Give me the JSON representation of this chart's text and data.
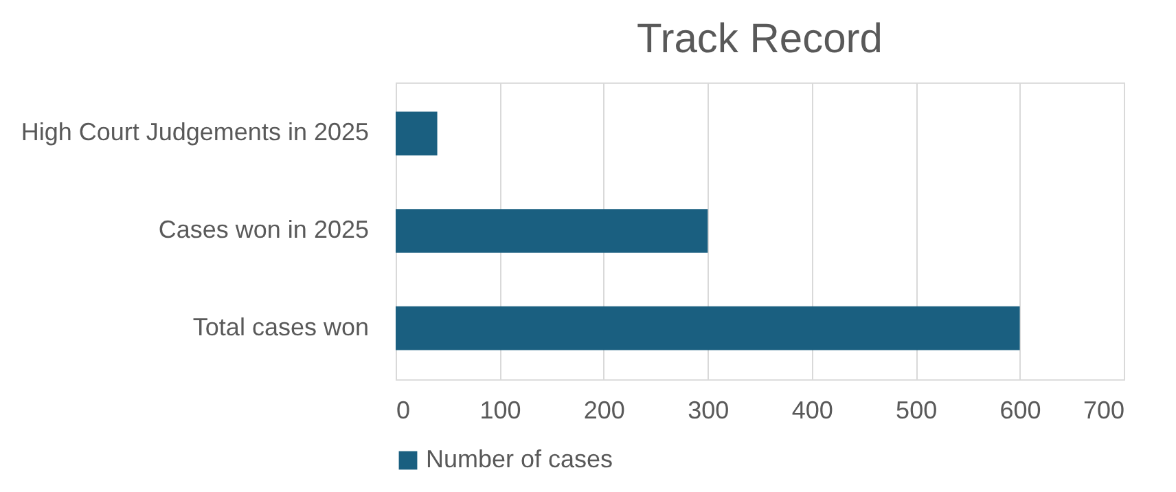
{
  "chart_data": {
    "type": "bar",
    "orientation": "horizontal",
    "title": "Track Record",
    "categories": [
      "High Court Judgements in 2025",
      "Cases won in 2025",
      "Total cases won"
    ],
    "series": [
      {
        "name": "Number of cases",
        "color": "#1a5f80",
        "values": [
          40,
          300,
          600
        ]
      }
    ],
    "xlim": [
      0,
      700
    ],
    "xticks": [
      0,
      100,
      200,
      300,
      400,
      500,
      600,
      700
    ],
    "grid": "x",
    "legend": "bottom"
  }
}
